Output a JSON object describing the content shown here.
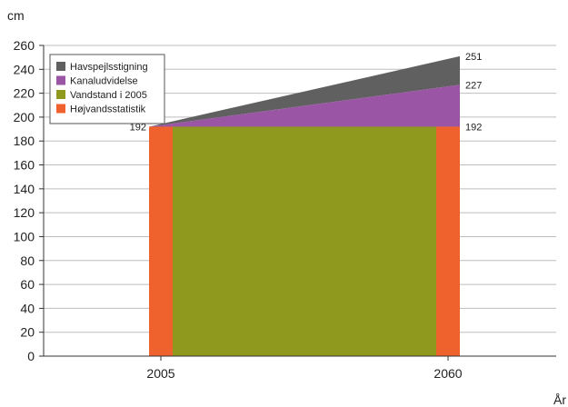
{
  "chart_data": {
    "type": "area",
    "x": [
      "2005",
      "2060"
    ],
    "ylim": [
      0,
      260
    ],
    "yticks": [
      0,
      20,
      40,
      60,
      80,
      100,
      120,
      140,
      160,
      180,
      200,
      220,
      240,
      260
    ],
    "ylabel": "cm",
    "xlabel": "År",
    "grid": true,
    "legend_position": "top-left",
    "series": [
      {
        "name": "Havspejlsstigning",
        "color": "#606060",
        "values": [
          192,
          251
        ]
      },
      {
        "name": "Kanaludvidelse",
        "color": "#9a55a5",
        "values": [
          192,
          227
        ]
      },
      {
        "name": "Vandstand i 2005",
        "color": "#8f991e",
        "values": [
          192,
          192
        ]
      },
      {
        "name": "Højvandsstatistik",
        "color": "#f0622d",
        "values": [
          192,
          192
        ]
      }
    ],
    "annotations": [
      {
        "x": "2005",
        "text": "192"
      },
      {
        "x": "2060",
        "text": "251"
      },
      {
        "x": "2060",
        "text": "227"
      },
      {
        "x": "2060",
        "text": "192"
      }
    ]
  }
}
